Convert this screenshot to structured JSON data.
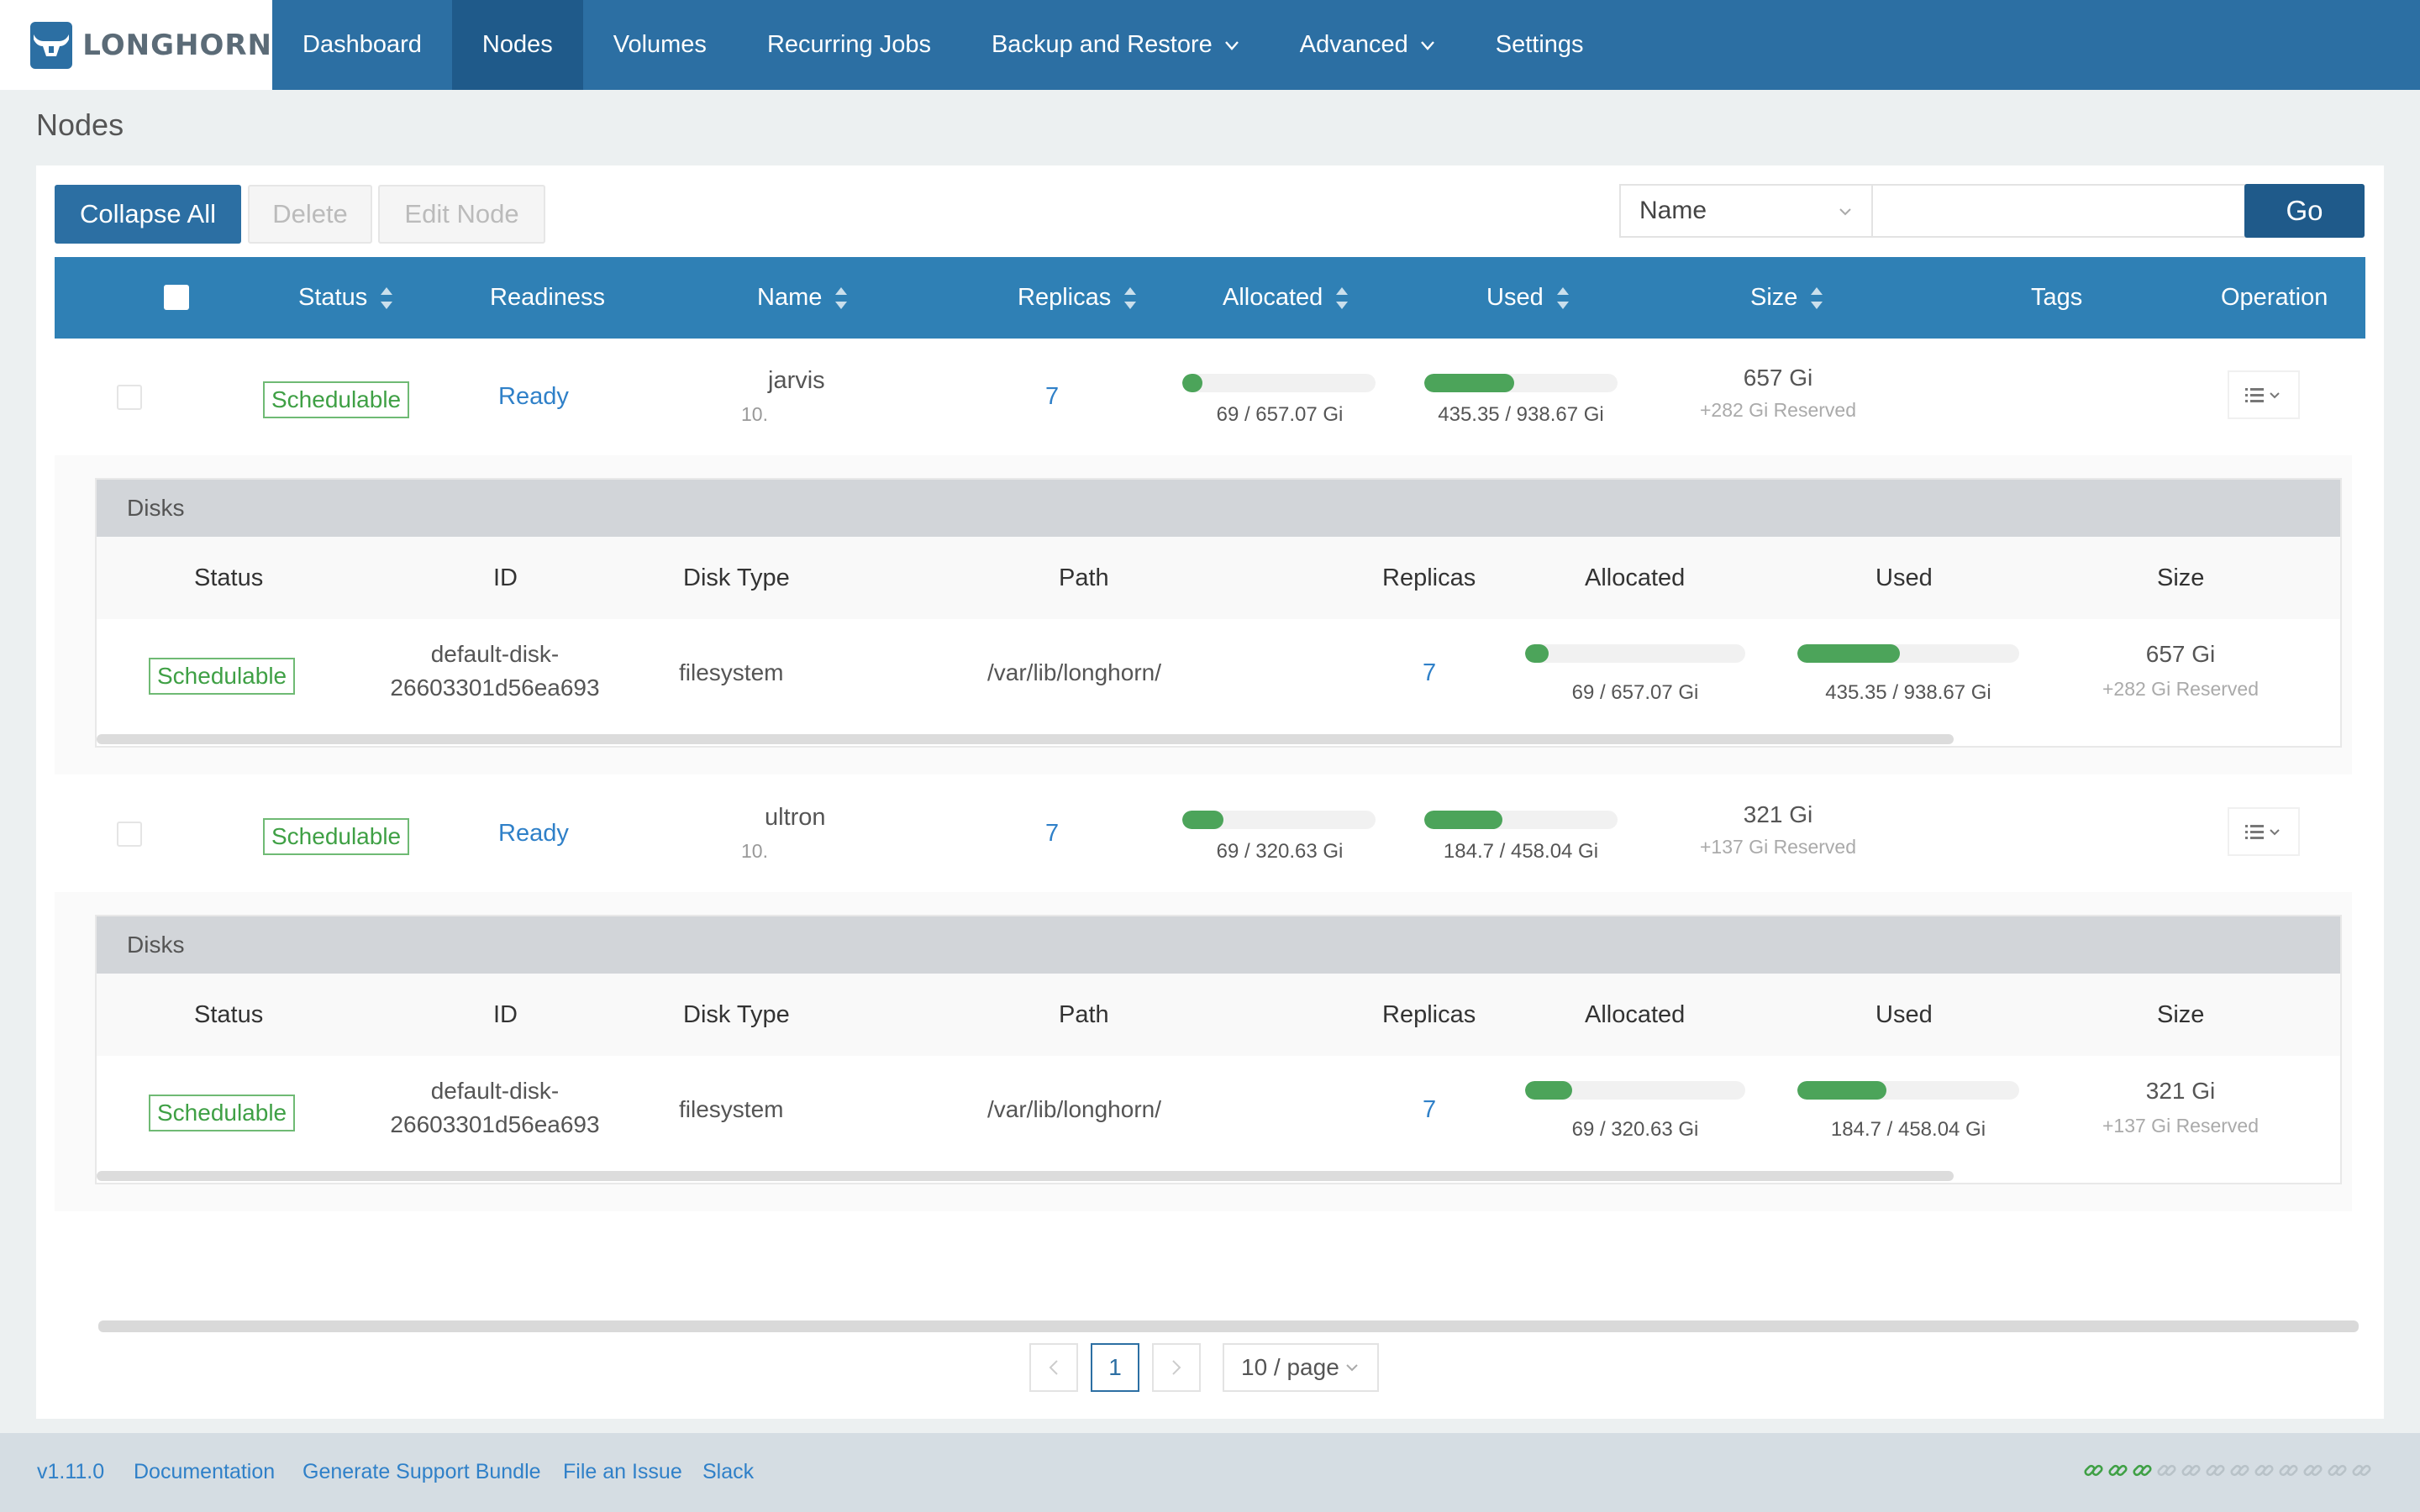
{
  "brand": {
    "name": "LONGHORN"
  },
  "nav": {
    "items": [
      {
        "label": "Dashboard"
      },
      {
        "label": "Nodes"
      },
      {
        "label": "Volumes"
      },
      {
        "label": "Recurring Jobs"
      },
      {
        "label": "Backup and Restore"
      },
      {
        "label": "Advanced"
      },
      {
        "label": "Settings"
      }
    ]
  },
  "page": {
    "title": "Nodes"
  },
  "toolbar": {
    "collapse_label": "Collapse All",
    "delete_label": "Delete",
    "edit_label": "Edit Node",
    "filter_field": "Name",
    "search_value": "",
    "go_label": "Go"
  },
  "table": {
    "headers": {
      "status": "Status",
      "readiness": "Readiness",
      "name": "Name",
      "replicas": "Replicas",
      "allocated": "Allocated",
      "used": "Used",
      "size": "Size",
      "tags": "Tags",
      "operation": "Operation"
    },
    "nodes": [
      {
        "status": "Schedulable",
        "readiness": "Ready",
        "name": "jarvis",
        "ip": "10.",
        "replicas": "7",
        "allocated": {
          "label": "69 / 657.07 Gi",
          "fraction": 0.105
        },
        "used": {
          "label": "435.35 / 938.67 Gi",
          "fraction": 0.464
        },
        "size": "657 Gi",
        "reserved": "+282 Gi Reserved",
        "disks": {
          "title": "Disks",
          "headers": {
            "status": "Status",
            "id": "ID",
            "disk_type": "Disk Type",
            "path": "Path",
            "replicas": "Replicas",
            "allocated": "Allocated",
            "used": "Used",
            "size": "Size"
          },
          "row": {
            "status": "Schedulable",
            "id_line1": "default-disk-",
            "id_line2": "26603301d56ea693",
            "disk_type": "filesystem",
            "path": "/var/lib/longhorn/",
            "replicas": "7",
            "allocated": {
              "label": "69 / 657.07 Gi",
              "fraction": 0.105
            },
            "used": {
              "label": "435.35 / 938.67 Gi",
              "fraction": 0.464
            },
            "size": "657 Gi",
            "reserved": "+282 Gi Reserved"
          }
        }
      },
      {
        "status": "Schedulable",
        "readiness": "Ready",
        "name": "ultron",
        "ip": "10.",
        "replicas": "7",
        "allocated": {
          "label": "69 / 320.63 Gi",
          "fraction": 0.215
        },
        "used": {
          "label": "184.7 / 458.04 Gi",
          "fraction": 0.403
        },
        "size": "321 Gi",
        "reserved": "+137 Gi Reserved",
        "disks": {
          "title": "Disks",
          "headers": {
            "status": "Status",
            "id": "ID",
            "disk_type": "Disk Type",
            "path": "Path",
            "replicas": "Replicas",
            "allocated": "Allocated",
            "used": "Used",
            "size": "Size"
          },
          "row": {
            "status": "Schedulable",
            "id_line1": "default-disk-",
            "id_line2": "26603301d56ea693",
            "disk_type": "filesystem",
            "path": "/var/lib/longhorn/",
            "replicas": "7",
            "allocated": {
              "label": "69 / 320.63 Gi",
              "fraction": 0.215
            },
            "used": {
              "label": "184.7 / 458.04 Gi",
              "fraction": 0.403
            },
            "size": "321 Gi",
            "reserved": "+137 Gi Reserved"
          }
        }
      }
    ]
  },
  "pagination": {
    "current": "1",
    "page_size": "10 / page",
    "prev": "<",
    "next": ">"
  },
  "footer": {
    "version": "v1.11.0",
    "documentation": "Documentation",
    "support_bundle": "Generate Support Bundle",
    "file_issue": "File an Issue",
    "slack": "Slack",
    "connection": {
      "active_links": 3,
      "total_links": 12,
      "active_color": "#3fa045",
      "inactive_color": "#b8c2c8"
    }
  },
  "colors": {
    "nav": "#2c6fa3",
    "nav_active": "#1f5a8a",
    "table_header": "#2f80b5",
    "success": "#4ca45a",
    "link": "#2f80c8"
  }
}
